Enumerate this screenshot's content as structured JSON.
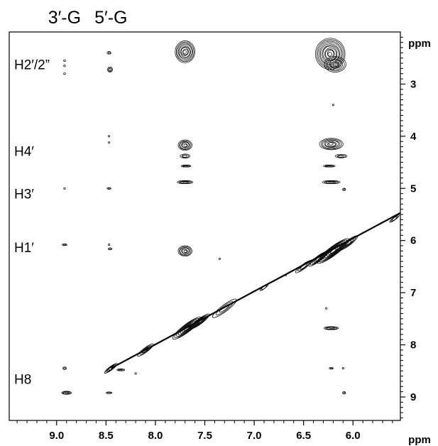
{
  "chart_data": {
    "type": "scatter",
    "title": "",
    "x_unit": "ppm",
    "y_unit": "ppm",
    "xlim": [
      9.48,
      5.52
    ],
    "ylim": [
      2.0,
      9.45
    ],
    "x_ticks": [
      9.0,
      8.5,
      8.0,
      7.5,
      7.0,
      6.5,
      6.0
    ],
    "x_tick_labels": [
      "9.0",
      "8.5",
      "8.0",
      "7.5",
      "7.0",
      "6.5",
      "6.0"
    ],
    "y_ticks": [
      3,
      4,
      5,
      6,
      7,
      8,
      9
    ],
    "y_tick_labels": [
      "3",
      "4",
      "5",
      "6",
      "7",
      "8",
      "9"
    ],
    "column_labels": [
      {
        "text": "3′-G",
        "x": 8.92
      },
      {
        "text": "5′-G",
        "x": 8.45
      }
    ],
    "row_labels": [
      {
        "text": "H2′/2”",
        "y": 2.62
      },
      {
        "text": "H4′",
        "y": 4.28
      },
      {
        "text": "H3′",
        "y": 5.1
      },
      {
        "text": "H1′",
        "y": 6.13
      },
      {
        "text": "H8",
        "y": 8.65
      }
    ],
    "diagonal": {
      "from": [
        8.45,
        8.45
      ],
      "to": [
        5.52,
        5.52
      ]
    },
    "peaks": [
      {
        "x": 7.7,
        "y": 2.38,
        "w": 0.2,
        "h": 0.42,
        "levels": 9
      },
      {
        "x": 6.23,
        "y": 2.42,
        "w": 0.3,
        "h": 0.6,
        "levels": 11
      },
      {
        "x": 6.18,
        "y": 2.62,
        "w": 0.22,
        "h": 0.3,
        "levels": 6
      },
      {
        "x": 8.47,
        "y": 2.4,
        "w": 0.04,
        "h": 0.05,
        "levels": 2
      },
      {
        "x": 8.46,
        "y": 2.72,
        "w": 0.05,
        "h": 0.1,
        "levels": 3
      },
      {
        "x": 8.92,
        "y": 2.55,
        "w": 0.02,
        "h": 0.03,
        "levels": 1
      },
      {
        "x": 8.92,
        "y": 2.65,
        "w": 0.02,
        "h": 0.03,
        "levels": 1
      },
      {
        "x": 8.92,
        "y": 2.8,
        "w": 0.02,
        "h": 0.03,
        "levels": 1
      },
      {
        "x": 6.2,
        "y": 3.4,
        "w": 0.015,
        "h": 0.03,
        "levels": 1
      },
      {
        "x": 8.47,
        "y": 4.0,
        "w": 0.015,
        "h": 0.03,
        "levels": 1
      },
      {
        "x": 8.47,
        "y": 4.12,
        "w": 0.015,
        "h": 0.03,
        "levels": 1
      },
      {
        "x": 7.7,
        "y": 4.17,
        "w": 0.14,
        "h": 0.2,
        "levels": 6
      },
      {
        "x": 7.7,
        "y": 4.38,
        "w": 0.1,
        "h": 0.08,
        "levels": 3
      },
      {
        "x": 6.22,
        "y": 4.15,
        "w": 0.24,
        "h": 0.22,
        "levels": 7
      },
      {
        "x": 6.12,
        "y": 4.38,
        "w": 0.12,
        "h": 0.07,
        "levels": 3
      },
      {
        "x": 7.69,
        "y": 4.57,
        "w": 0.1,
        "h": 0.04,
        "levels": 3
      },
      {
        "x": 6.24,
        "y": 4.57,
        "w": 0.12,
        "h": 0.04,
        "levels": 3
      },
      {
        "x": 7.7,
        "y": 4.88,
        "w": 0.16,
        "h": 0.06,
        "levels": 4
      },
      {
        "x": 6.22,
        "y": 4.88,
        "w": 0.18,
        "h": 0.06,
        "levels": 4
      },
      {
        "x": 6.09,
        "y": 5.02,
        "w": 0.03,
        "h": 0.05,
        "levels": 2
      },
      {
        "x": 8.92,
        "y": 5.0,
        "w": 0.015,
        "h": 0.02,
        "levels": 1
      },
      {
        "x": 8.47,
        "y": 5.0,
        "w": 0.04,
        "h": 0.03,
        "levels": 2
      },
      {
        "x": 7.7,
        "y": 6.2,
        "w": 0.14,
        "h": 0.2,
        "levels": 6
      },
      {
        "x": 8.92,
        "y": 6.08,
        "w": 0.05,
        "h": 0.02,
        "levels": 2
      },
      {
        "x": 8.47,
        "y": 6.08,
        "w": 0.015,
        "h": 0.02,
        "levels": 1
      },
      {
        "x": 8.46,
        "y": 6.16,
        "w": 0.04,
        "h": 0.04,
        "levels": 2
      },
      {
        "x": 6.22,
        "y": 7.68,
        "w": 0.15,
        "h": 0.06,
        "levels": 4
      },
      {
        "x": 6.27,
        "y": 7.3,
        "w": 0.01,
        "h": 0.02,
        "levels": 1
      },
      {
        "x": 8.92,
        "y": 8.45,
        "w": 0.04,
        "h": 0.05,
        "levels": 2
      },
      {
        "x": 6.22,
        "y": 8.45,
        "w": 0.04,
        "h": 0.03,
        "levels": 2
      },
      {
        "x": 6.1,
        "y": 8.45,
        "w": 0.015,
        "h": 0.02,
        "levels": 1
      },
      {
        "x": 8.9,
        "y": 8.92,
        "w": 0.1,
        "h": 0.06,
        "levels": 4
      },
      {
        "x": 8.47,
        "y": 8.92,
        "w": 0.06,
        "h": 0.03,
        "levels": 2
      },
      {
        "x": 6.09,
        "y": 8.92,
        "w": 0.03,
        "h": 0.05,
        "levels": 2
      },
      {
        "x": 8.35,
        "y": 8.48,
        "w": 0.08,
        "h": 0.04,
        "levels": 3
      },
      {
        "x": 7.35,
        "y": 6.35,
        "w": 0.01,
        "h": 0.02,
        "levels": 1
      },
      {
        "x": 6.68,
        "y": 6.66,
        "w": 0.01,
        "h": 0.01,
        "levels": 1
      },
      {
        "x": 8.2,
        "y": 8.55,
        "w": 0.01,
        "h": 0.02,
        "levels": 1
      }
    ],
    "diagonal_blobs": [
      {
        "x": 8.45,
        "w": 0.08,
        "levels": 4
      },
      {
        "x": 8.1,
        "w": 0.1,
        "levels": 3
      },
      {
        "x": 7.68,
        "w": 0.18,
        "levels": 7
      },
      {
        "x": 7.55,
        "w": 0.12,
        "levels": 5
      },
      {
        "x": 7.3,
        "w": 0.15,
        "levels": 3
      },
      {
        "x": 6.9,
        "w": 0.05,
        "levels": 2
      },
      {
        "x": 6.5,
        "w": 0.1,
        "levels": 3
      },
      {
        "x": 6.35,
        "w": 0.12,
        "levels": 5
      },
      {
        "x": 6.2,
        "w": 0.2,
        "levels": 8
      },
      {
        "x": 6.05,
        "w": 0.12,
        "levels": 4
      },
      {
        "x": 5.58,
        "w": 0.06,
        "levels": 3
      }
    ]
  }
}
